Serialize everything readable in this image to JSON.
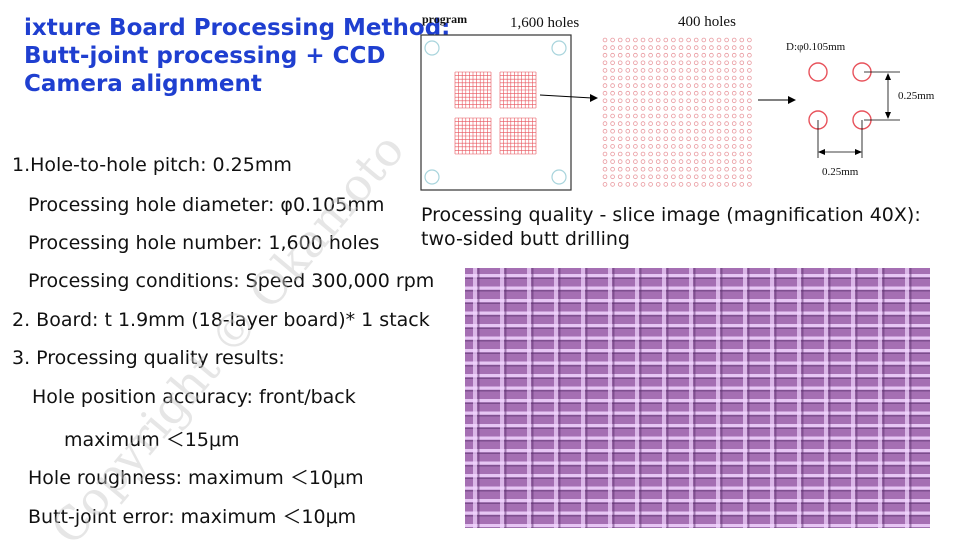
{
  "title": {
    "line1": "ixture Board Processing Method:",
    "line2": "Butt-joint processing + CCD",
    "line3": "Camera alignment"
  },
  "specs": [
    "1.Hole-to-hole pitch: 0.25mm",
    "Processing hole diameter: φ0.105mm",
    "Processing hole number: 1,600 holes",
    "Processing conditions: Speed 300,000 rpm",
    "2. Board: t 1.9mm (18-layer board)* 1 stack",
    "3. Processing quality results:",
    "Hole position accuracy: front/back",
    "maximum ＜15μm",
    "Hole roughness: maximum ＜10μm",
    "Butt-joint error: maximum ＜10μm"
  ],
  "diagram": {
    "program_label": "program",
    "holes_1600": "1,600 holes",
    "holes_400": "400 holes",
    "diameter_label": "D:φ0.105mm",
    "pitch_vertical": "0.25mm",
    "pitch_horizontal": "0.25mm",
    "colors": {
      "hole": "#e8535c",
      "dot": "#e99aa0",
      "fiducial": "#a8d4dc"
    }
  },
  "caption": {
    "line1": "Processing quality - slice image (magnification 40X):",
    "line2": "two-sided butt drilling"
  },
  "watermark": "Copyright © Okamoto",
  "micrograph": {
    "colors": {
      "base": "#a56fb3",
      "line": "#f2d6ff",
      "dark": "#5a2f6b"
    }
  }
}
